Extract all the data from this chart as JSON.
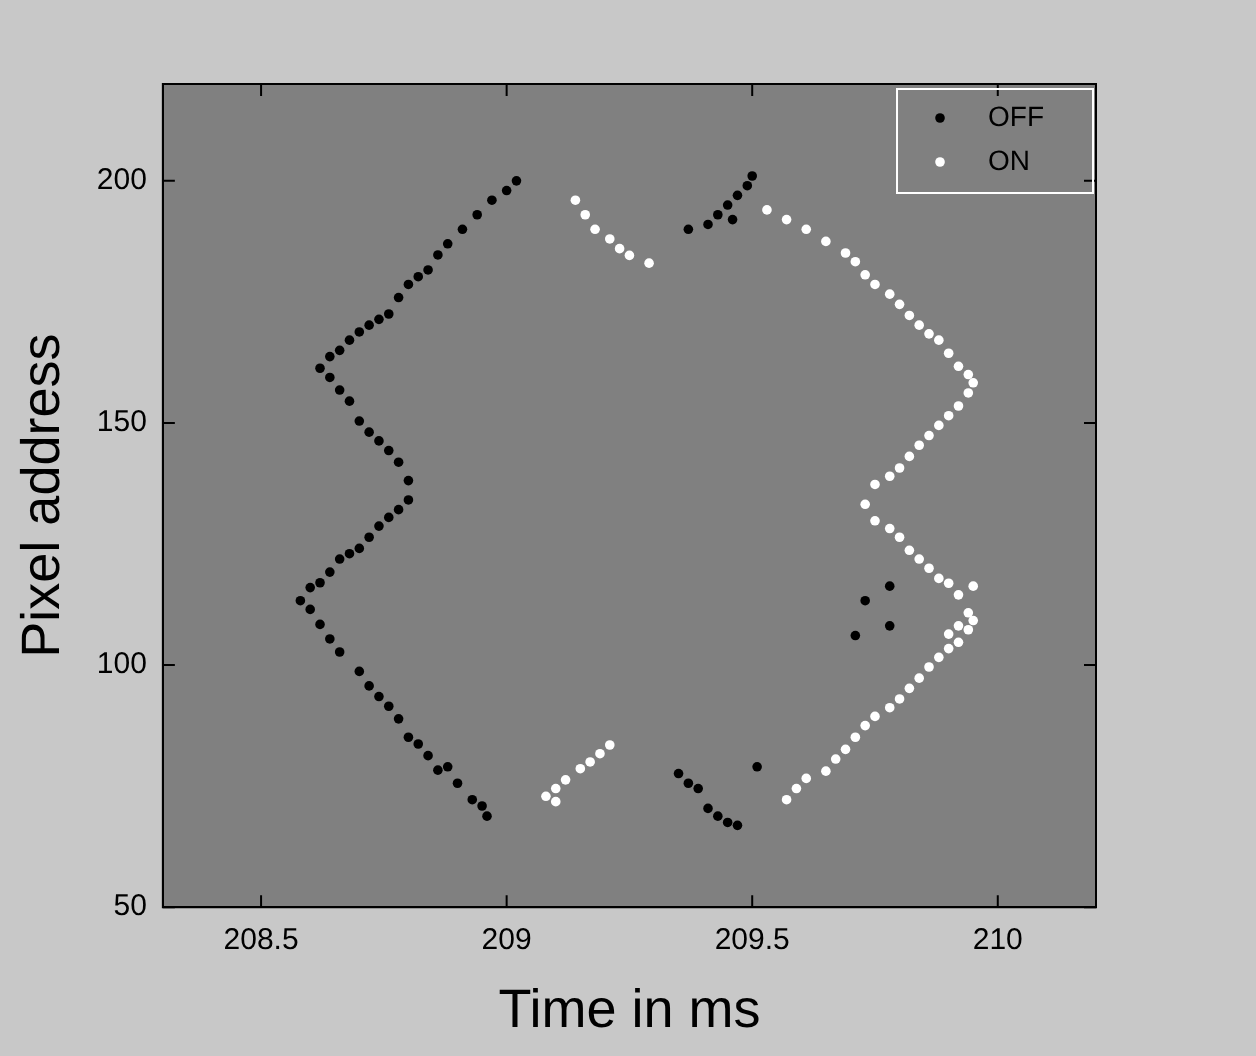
{
  "chart_data": {
    "type": "scatter",
    "xlabel": "Time in ms",
    "ylabel": "Pixel address",
    "xlim": [
      208.3,
      210.2
    ],
    "ylim": [
      50,
      220
    ],
    "xticks": [
      208.5,
      209,
      209.5,
      210
    ],
    "yticks": [
      50,
      100,
      150,
      200
    ],
    "legend": "top right",
    "marker": "circle",
    "grid": false,
    "series": [
      {
        "name": "OFF",
        "color": "#000000",
        "x": [
          209.02,
          209.0,
          208.97,
          208.94,
          208.91,
          208.88,
          208.86,
          208.84,
          208.82,
          208.8,
          208.78,
          208.76,
          208.74,
          208.72,
          208.7,
          208.68,
          208.66,
          208.64,
          208.62,
          208.64,
          208.66,
          208.68,
          208.7,
          208.72,
          208.74,
          208.76,
          208.78,
          208.8,
          208.8,
          208.78,
          208.76,
          208.74,
          208.72,
          208.7,
          208.68,
          208.66,
          208.64,
          208.62,
          208.6,
          208.58,
          208.6,
          208.62,
          208.64,
          208.66,
          208.7,
          208.72,
          208.74,
          208.76,
          208.78,
          208.8,
          208.82,
          208.84,
          208.86,
          208.88,
          208.9,
          208.93,
          208.95,
          208.96,
          209.35,
          209.37,
          209.39,
          209.41,
          209.43,
          209.45,
          209.47,
          209.51,
          209.37,
          209.41,
          209.43,
          209.45,
          209.47,
          209.49,
          209.5,
          209.46,
          209.78,
          209.73,
          209.71,
          209.78
        ],
        "values": [
          200,
          198,
          196,
          193,
          190,
          187,
          184.7,
          181.6,
          180.2,
          178.6,
          175.9,
          172.5,
          171.4,
          170.2,
          168.8,
          167.1,
          165,
          163.7,
          161.3,
          159.4,
          156.8,
          154.5,
          150.4,
          148.1,
          146.3,
          144.3,
          141.9,
          138.1,
          134.1,
          132.1,
          130.5,
          128.7,
          126.4,
          124.1,
          123,
          121.9,
          119.2,
          117,
          116,
          113.3,
          111.5,
          108.4,
          105.4,
          102.7,
          98.7,
          95.7,
          93.5,
          91.5,
          88.9,
          85.1,
          83.7,
          81.3,
          78.3,
          79,
          75.6,
          72.2,
          70.9,
          68.8,
          77.6,
          75.6,
          74.5,
          70.4,
          68.8,
          67.5,
          66.9,
          79,
          190,
          191,
          193,
          195,
          197,
          199,
          201,
          192,
          116.3,
          113.3,
          106.1,
          108.1
        ]
      },
      {
        "name": "ON",
        "color": "#ffffff",
        "x": [
          209.14,
          209.16,
          209.18,
          209.21,
          209.23,
          209.25,
          209.29,
          209.08,
          209.1,
          209.1,
          209.12,
          209.15,
          209.17,
          209.19,
          209.21,
          209.57,
          209.59,
          209.61,
          209.65,
          209.67,
          209.69,
          209.71,
          209.73,
          209.75,
          209.78,
          209.8,
          209.82,
          209.84,
          209.86,
          209.88,
          209.9,
          209.92,
          209.9,
          209.92,
          209.94,
          209.95,
          209.94,
          209.92,
          209.9,
          209.95,
          209.88,
          209.86,
          209.84,
          209.82,
          209.8,
          209.78,
          209.75,
          209.73,
          209.75,
          209.78,
          209.8,
          209.82,
          209.84,
          209.86,
          209.88,
          209.9,
          209.92,
          209.94,
          209.95,
          209.94,
          209.92,
          209.9,
          209.88,
          209.86,
          209.84,
          209.82,
          209.8,
          209.78,
          209.75,
          209.73,
          209.71,
          209.69,
          209.65,
          209.61,
          209.57,
          209.53
        ],
        "values": [
          196,
          193,
          190,
          188,
          186,
          184.6,
          183,
          72.9,
          71.8,
          74.5,
          76.3,
          78.6,
          80,
          81.7,
          83.5,
          72.2,
          74.5,
          76.6,
          78.1,
          80.6,
          82.6,
          85.1,
          87.5,
          89.4,
          91.2,
          93,
          95.2,
          97.3,
          99.6,
          101.6,
          103.4,
          104.7,
          106.4,
          108.1,
          107.3,
          109.2,
          110.8,
          114.5,
          116.9,
          116.3,
          117.9,
          120,
          121.9,
          123.7,
          126.4,
          128.2,
          129.8,
          133.2,
          137.3,
          139,
          140.7,
          143.1,
          145.4,
          147.4,
          149.5,
          151.5,
          153.5,
          156.2,
          158.3,
          160,
          161.7,
          164.4,
          167.1,
          168.4,
          170.2,
          172.2,
          174.5,
          176.6,
          178.6,
          180.6,
          183.3,
          185.1,
          187.5,
          190,
          192,
          194
        ]
      }
    ]
  }
}
